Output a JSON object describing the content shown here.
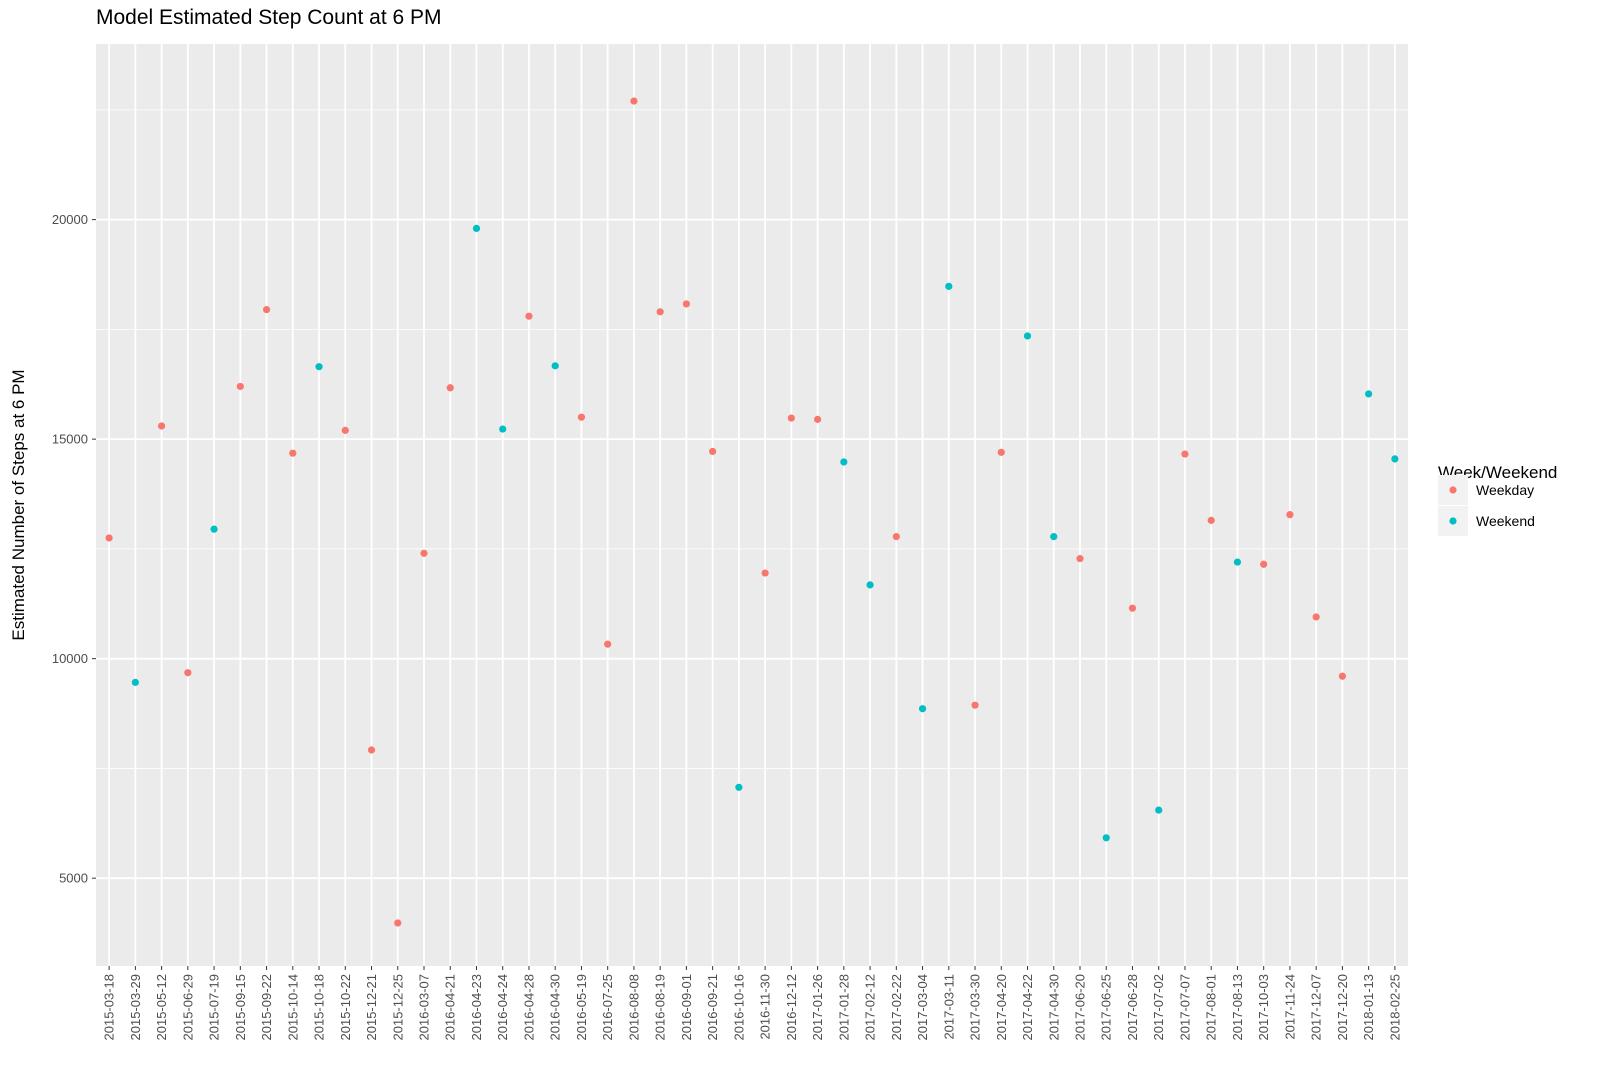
{
  "chart_data": {
    "type": "scatter",
    "title": "Model Estimated Step Count at 6 PM",
    "xlabel": "",
    "ylabel": "Estimated Number of Steps at 6 PM",
    "ylim": [
      3000,
      24000
    ],
    "yticks": [
      5000,
      10000,
      15000,
      20000
    ],
    "grid": true,
    "legend": {
      "title": "Week/Weekend",
      "position": "right"
    },
    "colors": {
      "Weekday": "#F8766D",
      "Weekend": "#00BFC4",
      "panel": "#EBEBEB",
      "grid": "#FFFFFF"
    },
    "categories": [
      "2015-03-18",
      "2015-03-29",
      "2015-05-12",
      "2015-06-29",
      "2015-07-19",
      "2015-09-15",
      "2015-09-22",
      "2015-10-14",
      "2015-10-18",
      "2015-10-22",
      "2015-12-21",
      "2015-12-25",
      "2016-03-07",
      "2016-04-21",
      "2016-04-23",
      "2016-04-24",
      "2016-04-28",
      "2016-04-30",
      "2016-05-19",
      "2016-07-25",
      "2016-08-08",
      "2016-08-19",
      "2016-09-01",
      "2016-09-21",
      "2016-10-16",
      "2016-11-30",
      "2016-12-12",
      "2017-01-26",
      "2017-01-28",
      "2017-02-12",
      "2017-02-22",
      "2017-03-04",
      "2017-03-11",
      "2017-03-30",
      "2017-04-20",
      "2017-04-22",
      "2017-04-30",
      "2017-06-20",
      "2017-06-25",
      "2017-06-28",
      "2017-07-02",
      "2017-07-07",
      "2017-08-01",
      "2017-08-13",
      "2017-10-03",
      "2017-11-24",
      "2017-12-07",
      "2017-12-20",
      "2018-01-13",
      "2018-02-25"
    ],
    "series": [
      {
        "name": "Weekday",
        "values": [
          12750,
          null,
          15300,
          9680,
          null,
          16200,
          17950,
          14680,
          null,
          15200,
          7920,
          3980,
          12400,
          16170,
          null,
          null,
          17800,
          null,
          15500,
          10330,
          22700,
          17900,
          18080,
          14720,
          null,
          11950,
          15480,
          15450,
          null,
          null,
          12780,
          null,
          null,
          8940,
          14700,
          null,
          null,
          12280,
          null,
          11150,
          null,
          14660,
          13150,
          null,
          12150,
          13280,
          10950,
          9600,
          null,
          null
        ]
      },
      {
        "name": "Weekend",
        "values": [
          null,
          9460,
          null,
          null,
          12950,
          null,
          null,
          null,
          16650,
          null,
          null,
          null,
          null,
          null,
          19800,
          15230,
          null,
          16670,
          null,
          null,
          null,
          null,
          null,
          null,
          7070,
          null,
          null,
          null,
          14480,
          11680,
          null,
          8860,
          18480,
          null,
          null,
          17350,
          12780,
          null,
          5920,
          null,
          6550,
          null,
          null,
          12200,
          null,
          null,
          null,
          null,
          16030,
          14550
        ]
      }
    ]
  }
}
